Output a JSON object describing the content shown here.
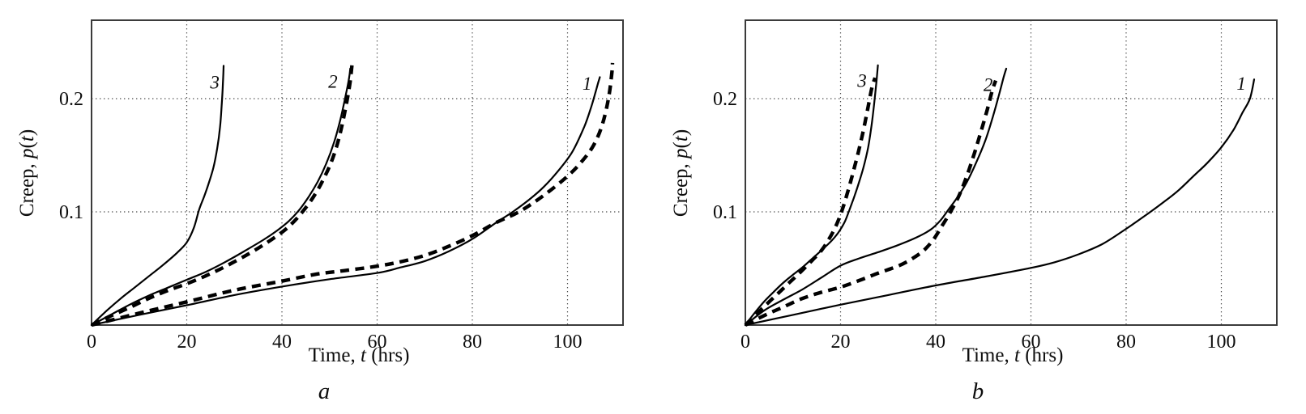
{
  "figure": {
    "background": "#ffffff",
    "curve_color": "#000000",
    "frame_color": "#3b3b3b",
    "grid_color": "#4c4c4c",
    "text_color": "#0d0d0d"
  },
  "axes": {
    "x_tick_labels": [
      "0",
      "20",
      "40",
      "60",
      "80",
      "100"
    ],
    "x_tick_values": [
      0,
      20,
      40,
      60,
      80,
      100
    ],
    "y_tick_labels": [
      "0.1",
      "0.2"
    ],
    "y_tick_values": [
      0.1,
      0.2
    ],
    "x_range": [
      0,
      111.5
    ],
    "y_range": [
      0,
      0.2693
    ],
    "grid": "dotted",
    "x_label_parts": [
      {
        "t": "Time, ",
        "i": false
      },
      {
        "t": "t",
        "i": true
      },
      {
        "t": " (hrs)",
        "i": false
      }
    ],
    "y_label_parts": [
      {
        "t": "Creep, ",
        "i": false
      },
      {
        "t": "p",
        "i": true
      },
      {
        "t": "(",
        "i": false
      },
      {
        "t": "t",
        "i": true
      },
      {
        "t": ")",
        "i": false
      }
    ]
  },
  "chart_data": {
    "type": "line",
    "x_unit": "hours",
    "y_unit": "creep strain p(t)",
    "panels": [
      {
        "caption": "a",
        "curve_labels": [
          {
            "text": "3",
            "t": 25.9,
            "p": 0.2145
          },
          {
            "text": "2",
            "t": 50.7,
            "p": 0.2155
          },
          {
            "text": "1",
            "t": 104.1,
            "p": 0.2135
          }
        ],
        "curves": [
          {
            "id": "1",
            "style": "solid",
            "points": [
              [
                0,
                0
              ],
              [
                10,
                0.009
              ],
              [
                20,
                0.0175
              ],
              [
                30,
                0.0265
              ],
              [
                40,
                0.034
              ],
              [
                50,
                0.0405
              ],
              [
                60,
                0.046
              ],
              [
                65,
                0.051
              ],
              [
                70,
                0.0565
              ],
              [
                75,
                0.065
              ],
              [
                80,
                0.076
              ],
              [
                85,
                0.0905
              ],
              [
                88.5,
                0.1
              ],
              [
                92,
                0.111
              ],
              [
                95,
                0.122
              ],
              [
                98,
                0.136
              ],
              [
                101,
                0.153
              ],
              [
                103.5,
                0.175
              ],
              [
                105,
                0.193
              ],
              [
                105.9,
                0.206
              ],
              [
                106.5,
                0.215
              ],
              [
                106.8,
                0.219
              ]
            ]
          },
          {
            "id": "1",
            "style": "dashed",
            "points": [
              [
                0,
                0
              ],
              [
                10,
                0.0105
              ],
              [
                20,
                0.0205
              ],
              [
                30,
                0.0308
              ],
              [
                40,
                0.0388
              ],
              [
                47,
                0.0448
              ],
              [
                53,
                0.048
              ],
              [
                60,
                0.052
              ],
              [
                65,
                0.056
              ],
              [
                70,
                0.0615
              ],
              [
                75,
                0.0695
              ],
              [
                80,
                0.079
              ],
              [
                85,
                0.0905
              ],
              [
                90,
                0.1005
              ],
              [
                95,
                0.1145
              ],
              [
                100,
                0.1315
              ],
              [
                103,
                0.1445
              ],
              [
                105.5,
                0.159
              ],
              [
                107.3,
                0.177
              ],
              [
                108.6,
                0.2
              ],
              [
                109.3,
                0.222
              ],
              [
                109.45,
                0.2315
              ]
            ]
          },
          {
            "id": "2",
            "style": "solid",
            "points": [
              [
                0,
                0
              ],
              [
                4,
                0.009
              ],
              [
                8,
                0.018
              ],
              [
                12,
                0.026
              ],
              [
                16,
                0.033
              ],
              [
                20,
                0.04
              ],
              [
                24,
                0.047
              ],
              [
                28,
                0.0555
              ],
              [
                32,
                0.065
              ],
              [
                36,
                0.075
              ],
              [
                39,
                0.0835
              ],
              [
                41.5,
                0.092
              ],
              [
                43.5,
                0.101
              ],
              [
                45.5,
                0.1125
              ],
              [
                47.5,
                0.1265
              ],
              [
                49.3,
                0.1425
              ],
              [
                51,
                0.162
              ],
              [
                52.3,
                0.182
              ],
              [
                53.4,
                0.203
              ],
              [
                54.1,
                0.218
              ],
              [
                54.35,
                0.2265
              ]
            ]
          },
          {
            "id": "2",
            "style": "dashed",
            "points": [
              [
                0,
                0
              ],
              [
                4,
                0.008
              ],
              [
                8,
                0.0155
              ],
              [
                12,
                0.0235
              ],
              [
                16,
                0.0305
              ],
              [
                20,
                0.0365
              ],
              [
                24,
                0.0435
              ],
              [
                28,
                0.0515
              ],
              [
                32,
                0.0605
              ],
              [
                36,
                0.0705
              ],
              [
                40,
                0.082
              ],
              [
                42.3,
                0.0905
              ],
              [
                44.3,
                0.1
              ],
              [
                46.5,
                0.1125
              ],
              [
                48.5,
                0.127
              ],
              [
                50.5,
                0.1455
              ],
              [
                52,
                0.1655
              ],
              [
                53.3,
                0.19
              ],
              [
                54.3,
                0.214
              ],
              [
                54.75,
                0.2315
              ]
            ]
          },
          {
            "id": "3",
            "style": "solid",
            "points": [
              [
                0,
                0
              ],
              [
                3,
                0.012
              ],
              [
                6,
                0.023
              ],
              [
                9,
                0.033
              ],
              [
                12,
                0.043
              ],
              [
                15,
                0.053
              ],
              [
                18,
                0.064
              ],
              [
                20,
                0.073
              ],
              [
                21.5,
                0.086
              ],
              [
                22.6,
                0.102
              ],
              [
                23.6,
                0.113
              ],
              [
                24.6,
                0.125
              ],
              [
                25.6,
                0.139
              ],
              [
                26.4,
                0.156
              ],
              [
                27,
                0.175
              ],
              [
                27.35,
                0.195
              ],
              [
                27.6,
                0.213
              ],
              [
                27.75,
                0.229
              ]
            ]
          }
        ]
      },
      {
        "caption": "b",
        "curve_labels": [
          {
            "text": "3",
            "t": 24.5,
            "p": 0.216
          },
          {
            "text": "2",
            "t": 51.0,
            "p": 0.2125
          },
          {
            "text": "1",
            "t": 104.2,
            "p": 0.2135
          }
        ],
        "curves": [
          {
            "id": "1",
            "style": "solid",
            "points": [
              [
                0,
                0
              ],
              [
                10,
                0.009
              ],
              [
                20,
                0.018
              ],
              [
                30,
                0.0265
              ],
              [
                40,
                0.035
              ],
              [
                50,
                0.0425
              ],
              [
                60,
                0.0505
              ],
              [
                65,
                0.0555
              ],
              [
                70,
                0.0625
              ],
              [
                75,
                0.0715
              ],
              [
                80,
                0.085
              ],
              [
                85.1,
                0.1
              ],
              [
                88,
                0.109
              ],
              [
                91,
                0.119
              ],
              [
                94,
                0.131
              ],
              [
                97,
                0.143
              ],
              [
                100,
                0.157
              ],
              [
                102.5,
                0.172
              ],
              [
                104.5,
                0.188
              ],
              [
                106,
                0.2
              ],
              [
                106.9,
                0.217
              ]
            ]
          },
          {
            "id": "2",
            "style": "solid",
            "points": [
              [
                0,
                0
              ],
              [
                4,
                0.013
              ],
              [
                8,
                0.0225
              ],
              [
                12,
                0.0315
              ],
              [
                16,
                0.042
              ],
              [
                20,
                0.0525
              ],
              [
                24,
                0.059
              ],
              [
                28,
                0.0645
              ],
              [
                32,
                0.0705
              ],
              [
                36,
                0.0775
              ],
              [
                39,
                0.0845
              ],
              [
                41,
                0.0925
              ],
              [
                42.5,
                0.101
              ],
              [
                44.5,
                0.1125
              ],
              [
                46.5,
                0.126
              ],
              [
                48.5,
                0.1435
              ],
              [
                50.5,
                0.164
              ],
              [
                52,
                0.184
              ],
              [
                53.3,
                0.2035
              ],
              [
                54.3,
                0.2195
              ],
              [
                54.8,
                0.2265
              ]
            ]
          },
          {
            "id": "2",
            "style": "dashed",
            "points": [
              [
                0,
                0
              ],
              [
                4,
                0.0085
              ],
              [
                8,
                0.016
              ],
              [
                12,
                0.0235
              ],
              [
                16,
                0.029
              ],
              [
                20,
                0.0335
              ],
              [
                24,
                0.0395
              ],
              [
                28,
                0.046
              ],
              [
                32,
                0.052
              ],
              [
                35,
                0.0585
              ],
              [
                37.5,
                0.066
              ],
              [
                39.5,
                0.0755
              ],
              [
                41.3,
                0.0875
              ],
              [
                43.1,
                0.1
              ],
              [
                44.8,
                0.1135
              ],
              [
                46.3,
                0.129
              ],
              [
                47.8,
                0.1475
              ],
              [
                49.3,
                0.168
              ],
              [
                50.8,
                0.19
              ],
              [
                51.9,
                0.2075
              ],
              [
                52.6,
                0.216
              ]
            ]
          },
          {
            "id": "3",
            "style": "solid",
            "points": [
              [
                0,
                0
              ],
              [
                2,
                0.011
              ],
              [
                4,
                0.021
              ],
              [
                6,
                0.0295
              ],
              [
                8,
                0.0375
              ],
              [
                10,
                0.0445
              ],
              [
                12,
                0.051
              ],
              [
                14,
                0.0585
              ],
              [
                16,
                0.066
              ],
              [
                18,
                0.074
              ],
              [
                19.5,
                0.0815
              ],
              [
                20.8,
                0.0905
              ],
              [
                21.8,
                0.101
              ],
              [
                22.8,
                0.1125
              ],
              [
                23.8,
                0.125
              ],
              [
                24.8,
                0.139
              ],
              [
                25.8,
                0.157
              ],
              [
                26.5,
                0.176
              ],
              [
                27.1,
                0.197
              ],
              [
                27.55,
                0.2155
              ],
              [
                27.85,
                0.2295
              ]
            ]
          },
          {
            "id": "3",
            "style": "dashed",
            "points": [
              [
                0,
                0
              ],
              [
                2,
                0.0085
              ],
              [
                4,
                0.0165
              ],
              [
                6,
                0.0245
              ],
              [
                8,
                0.0325
              ],
              [
                10,
                0.0405
              ],
              [
                12,
                0.0485
              ],
              [
                14,
                0.057
              ],
              [
                16,
                0.066
              ],
              [
                17.5,
                0.0755
              ],
              [
                18.8,
                0.0855
              ],
              [
                19.9,
                0.0965
              ],
              [
                20.9,
                0.109
              ],
              [
                21.9,
                0.1235
              ],
              [
                22.9,
                0.139
              ],
              [
                23.9,
                0.1555
              ],
              [
                24.9,
                0.174
              ],
              [
                25.8,
                0.193
              ],
              [
                26.6,
                0.21
              ],
              [
                27.25,
                0.2185
              ]
            ]
          }
        ]
      }
    ]
  }
}
